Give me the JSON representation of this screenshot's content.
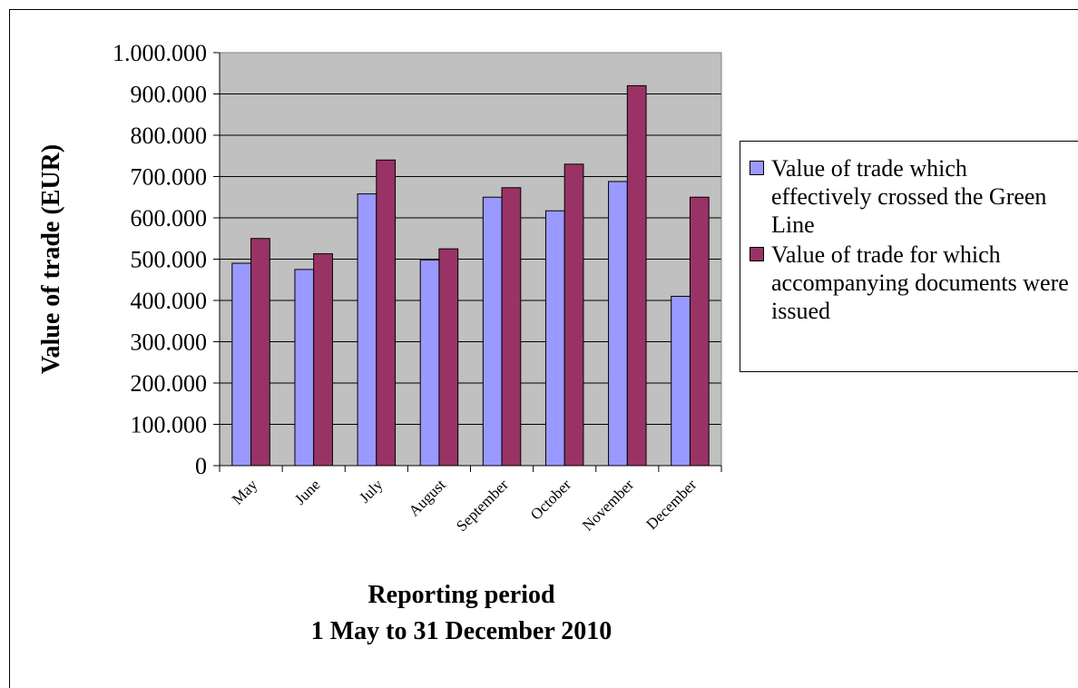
{
  "chart_data": {
    "type": "bar",
    "ylabel": "Value of trade (EUR)",
    "xlabel": [
      "Reporting period",
      "1 May to 31 December 2010"
    ],
    "categories": [
      "May",
      "June",
      "July",
      "August",
      "September",
      "October",
      "November",
      "December"
    ],
    "series": [
      {
        "name": "Value of trade which effectively crossed the Green Line",
        "color": "#9999ff",
        "values": [
          490000,
          475000,
          658000,
          498000,
          650000,
          617000,
          688000,
          410000
        ]
      },
      {
        "name": "Value of trade for which accompanying documents were issued",
        "color": "#993366",
        "values": [
          550000,
          513000,
          740000,
          525000,
          673000,
          730000,
          920000,
          650000
        ]
      }
    ],
    "ylim": [
      0,
      1000000
    ],
    "yticks": [
      0,
      {
        "value": 100000,
        "label": "100.000"
      },
      {
        "value": 200000,
        "label": "200.000"
      },
      {
        "value": 300000,
        "label": "300.000"
      },
      {
        "value": 400000,
        "label": "400.000"
      },
      {
        "value": 500000,
        "label": "500.000"
      },
      {
        "value": 600000,
        "label": "600.000"
      },
      {
        "value": 700000,
        "label": "700.000"
      },
      {
        "value": 800000,
        "label": "800.000"
      },
      {
        "value": 900000,
        "label": "900.000"
      },
      {
        "value": 1000000,
        "label": "1.000.000"
      }
    ],
    "grid": true,
    "plot_background": "#c0c0c0",
    "legend": "right"
  }
}
